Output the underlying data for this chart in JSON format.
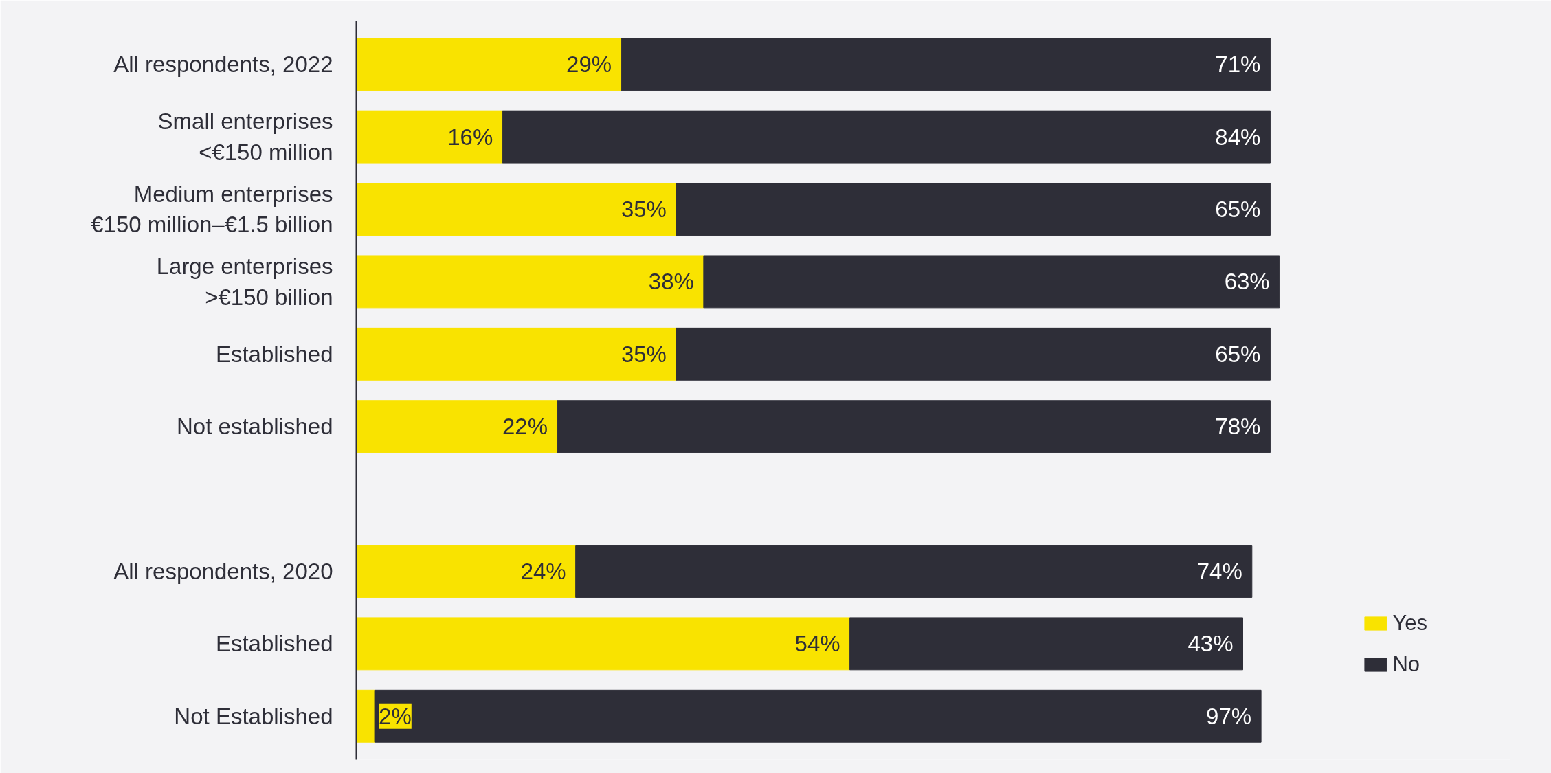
{
  "chart_data": {
    "type": "bar",
    "orientation": "horizontal",
    "stacked": true,
    "categories": [
      "All respondents, 2022",
      "Small enterprises\n<€150 million",
      "Medium enterprises\n€150 million–€1.5 billion",
      "Large enterprises\n>€150 billion",
      "Established",
      "Not established",
      null,
      "All respondents, 2020",
      "Established",
      "Not Established"
    ],
    "series": [
      {
        "name": "Yes",
        "color": "#f9e300",
        "values": [
          29,
          16,
          35,
          38,
          35,
          22,
          null,
          24,
          54,
          2
        ],
        "value_labels": [
          "29%",
          "16%",
          "35%",
          "38%",
          "35%",
          "22%",
          null,
          "24%",
          "54%",
          "2%"
        ]
      },
      {
        "name": "No",
        "color": "#2e2e38",
        "values": [
          71,
          84,
          65,
          63,
          65,
          78,
          null,
          74,
          43,
          97
        ],
        "value_labels": [
          "71%",
          "84%",
          "65%",
          "63%",
          "65%",
          "78%",
          null,
          "74%",
          "43%",
          "97%"
        ]
      }
    ],
    "legend": "bottom right"
  }
}
